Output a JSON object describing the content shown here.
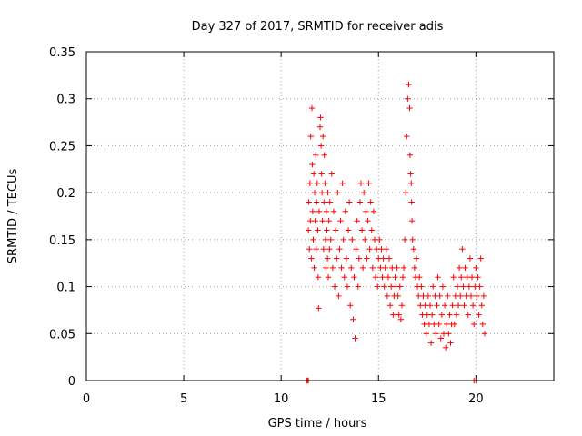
{
  "chart_data": {
    "type": "scatter",
    "title": "Day 327 of 2017, SRMTID for receiver adis",
    "xlabel": "GPS time / hours",
    "ylabel": "SRMTID / TECUs",
    "xlim": [
      0,
      24
    ],
    "ylim": [
      0,
      0.35
    ],
    "xticks": [
      0,
      5,
      10,
      15,
      20
    ],
    "xtick_labels": [
      "0",
      "5",
      "10",
      "15",
      "20"
    ],
    "yticks": [
      0,
      0.05,
      0.1,
      0.15,
      0.2,
      0.25,
      0.3,
      0.35
    ],
    "ytick_labels": [
      "0",
      "0.05",
      "0.1",
      "0.15",
      "0.2",
      "0.25",
      "0.3",
      "0.35"
    ],
    "grid": true,
    "marker": "+",
    "color": "#ff0000",
    "series": [
      {
        "points": [
          [
            11.3,
            0.0
          ],
          [
            11.35,
            0.0
          ],
          [
            11.4,
            0.0
          ],
          [
            19.9,
            0.0
          ],
          [
            20.0,
            0.0
          ],
          [
            11.4,
            0.16
          ],
          [
            11.42,
            0.19
          ],
          [
            11.45,
            0.14
          ],
          [
            11.48,
            0.21
          ],
          [
            11.5,
            0.17
          ],
          [
            11.52,
            0.26
          ],
          [
            11.55,
            0.13
          ],
          [
            11.58,
            0.29
          ],
          [
            11.6,
            0.23
          ],
          [
            11.62,
            0.18
          ],
          [
            11.65,
            0.15
          ],
          [
            11.68,
            0.22
          ],
          [
            11.7,
            0.12
          ],
          [
            11.72,
            0.2
          ],
          [
            11.75,
            0.17
          ],
          [
            11.78,
            0.24
          ],
          [
            11.8,
            0.14
          ],
          [
            11.82,
            0.19
          ],
          [
            11.85,
            0.21
          ],
          [
            11.88,
            0.16
          ],
          [
            11.9,
            0.11
          ],
          [
            11.92,
            0.077
          ],
          [
            11.95,
            0.18
          ],
          [
            12.0,
            0.27
          ],
          [
            12.02,
            0.28
          ],
          [
            12.05,
            0.25
          ],
          [
            12.08,
            0.22
          ],
          [
            12.1,
            0.2
          ],
          [
            12.12,
            0.17
          ],
          [
            12.15,
            0.26
          ],
          [
            12.18,
            0.14
          ],
          [
            12.2,
            0.19
          ],
          [
            12.22,
            0.24
          ],
          [
            12.25,
            0.21
          ],
          [
            12.28,
            0.15
          ],
          [
            12.3,
            0.12
          ],
          [
            12.32,
            0.18
          ],
          [
            12.35,
            0.16
          ],
          [
            12.38,
            0.13
          ],
          [
            12.4,
            0.2
          ],
          [
            12.42,
            0.11
          ],
          [
            12.45,
            0.17
          ],
          [
            12.48,
            0.14
          ],
          [
            12.5,
            0.19
          ],
          [
            12.55,
            0.15
          ],
          [
            12.6,
            0.22
          ],
          [
            12.65,
            0.12
          ],
          [
            12.7,
            0.18
          ],
          [
            12.75,
            0.1
          ],
          [
            12.8,
            0.16
          ],
          [
            12.85,
            0.13
          ],
          [
            12.9,
            0.2
          ],
          [
            12.95,
            0.09
          ],
          [
            13.0,
            0.14
          ],
          [
            13.05,
            0.17
          ],
          [
            13.1,
            0.12
          ],
          [
            13.15,
            0.21
          ],
          [
            13.2,
            0.15
          ],
          [
            13.25,
            0.11
          ],
          [
            13.3,
            0.18
          ],
          [
            13.35,
            0.13
          ],
          [
            13.4,
            0.1
          ],
          [
            13.45,
            0.16
          ],
          [
            13.5,
            0.19
          ],
          [
            13.55,
            0.08
          ],
          [
            13.6,
            0.12
          ],
          [
            13.65,
            0.15
          ],
          [
            13.7,
            0.065
          ],
          [
            13.75,
            0.11
          ],
          [
            13.8,
            0.045
          ],
          [
            13.85,
            0.14
          ],
          [
            13.9,
            0.17
          ],
          [
            13.95,
            0.1
          ],
          [
            14.0,
            0.13
          ],
          [
            14.05,
            0.19
          ],
          [
            14.1,
            0.21
          ],
          [
            14.15,
            0.16
          ],
          [
            14.2,
            0.12
          ],
          [
            14.25,
            0.2
          ],
          [
            14.3,
            0.15
          ],
          [
            14.35,
            0.18
          ],
          [
            14.4,
            0.13
          ],
          [
            14.45,
            0.17
          ],
          [
            14.5,
            0.21
          ],
          [
            14.55,
            0.14
          ],
          [
            14.6,
            0.19
          ],
          [
            14.65,
            0.16
          ],
          [
            14.7,
            0.12
          ],
          [
            14.75,
            0.18
          ],
          [
            14.8,
            0.15
          ],
          [
            14.85,
            0.11
          ],
          [
            14.9,
            0.14
          ],
          [
            14.95,
            0.1
          ],
          [
            15.0,
            0.13
          ],
          [
            15.05,
            0.15
          ],
          [
            15.1,
            0.12
          ],
          [
            15.15,
            0.14
          ],
          [
            15.2,
            0.11
          ],
          [
            15.25,
            0.13
          ],
          [
            15.3,
            0.1
          ],
          [
            15.35,
            0.12
          ],
          [
            15.4,
            0.14
          ],
          [
            15.45,
            0.09
          ],
          [
            15.5,
            0.11
          ],
          [
            15.55,
            0.13
          ],
          [
            15.6,
            0.08
          ],
          [
            15.65,
            0.1
          ],
          [
            15.7,
            0.12
          ],
          [
            15.75,
            0.07
          ],
          [
            15.8,
            0.09
          ],
          [
            15.85,
            0.11
          ],
          [
            15.9,
            0.1
          ],
          [
            15.95,
            0.12
          ],
          [
            16.0,
            0.09
          ],
          [
            16.05,
            0.07
          ],
          [
            16.1,
            0.1
          ],
          [
            16.15,
            0.065
          ],
          [
            16.2,
            0.08
          ],
          [
            16.25,
            0.11
          ],
          [
            16.3,
            0.12
          ],
          [
            16.35,
            0.15
          ],
          [
            16.4,
            0.2
          ],
          [
            16.45,
            0.26
          ],
          [
            16.5,
            0.3
          ],
          [
            16.55,
            0.315
          ],
          [
            16.6,
            0.29
          ],
          [
            16.62,
            0.24
          ],
          [
            16.65,
            0.22
          ],
          [
            16.68,
            0.21
          ],
          [
            16.7,
            0.19
          ],
          [
            16.72,
            0.17
          ],
          [
            16.75,
            0.15
          ],
          [
            16.8,
            0.14
          ],
          [
            16.85,
            0.12
          ],
          [
            16.9,
            0.11
          ],
          [
            16.95,
            0.13
          ],
          [
            17.0,
            0.1
          ],
          [
            17.05,
            0.09
          ],
          [
            17.1,
            0.11
          ],
          [
            17.15,
            0.08
          ],
          [
            17.2,
            0.1
          ],
          [
            17.25,
            0.07
          ],
          [
            17.3,
            0.09
          ],
          [
            17.35,
            0.06
          ],
          [
            17.4,
            0.08
          ],
          [
            17.45,
            0.05
          ],
          [
            17.5,
            0.07
          ],
          [
            17.55,
            0.09
          ],
          [
            17.6,
            0.06
          ],
          [
            17.65,
            0.08
          ],
          [
            17.7,
            0.04
          ],
          [
            17.75,
            0.07
          ],
          [
            17.8,
            0.1
          ],
          [
            17.85,
            0.06
          ],
          [
            17.9,
            0.09
          ],
          [
            17.95,
            0.05
          ],
          [
            18.0,
            0.08
          ],
          [
            18.05,
            0.11
          ],
          [
            18.1,
            0.06
          ],
          [
            18.15,
            0.09
          ],
          [
            18.2,
            0.045
          ],
          [
            18.25,
            0.07
          ],
          [
            18.3,
            0.1
          ],
          [
            18.35,
            0.05
          ],
          [
            18.4,
            0.08
          ],
          [
            18.45,
            0.035
          ],
          [
            18.5,
            0.06
          ],
          [
            18.55,
            0.09
          ],
          [
            18.6,
            0.05
          ],
          [
            18.65,
            0.07
          ],
          [
            18.7,
            0.04
          ],
          [
            18.75,
            0.06
          ],
          [
            18.8,
            0.08
          ],
          [
            18.85,
            0.11
          ],
          [
            18.9,
            0.06
          ],
          [
            18.95,
            0.09
          ],
          [
            19.0,
            0.07
          ],
          [
            19.05,
            0.1
          ],
          [
            19.1,
            0.08
          ],
          [
            19.15,
            0.12
          ],
          [
            19.2,
            0.09
          ],
          [
            19.25,
            0.11
          ],
          [
            19.3,
            0.14
          ],
          [
            19.35,
            0.1
          ],
          [
            19.4,
            0.08
          ],
          [
            19.45,
            0.12
          ],
          [
            19.5,
            0.09
          ],
          [
            19.55,
            0.11
          ],
          [
            19.6,
            0.07
          ],
          [
            19.65,
            0.1
          ],
          [
            19.7,
            0.13
          ],
          [
            19.75,
            0.09
          ],
          [
            19.8,
            0.11
          ],
          [
            19.85,
            0.08
          ],
          [
            19.9,
            0.06
          ],
          [
            19.95,
            0.1
          ],
          [
            20.0,
            0.12
          ],
          [
            20.05,
            0.09
          ],
          [
            20.1,
            0.11
          ],
          [
            20.15,
            0.07
          ],
          [
            20.2,
            0.1
          ],
          [
            20.25,
            0.13
          ],
          [
            20.3,
            0.08
          ],
          [
            20.35,
            0.06
          ],
          [
            20.4,
            0.09
          ],
          [
            20.45,
            0.05
          ]
        ]
      }
    ]
  }
}
